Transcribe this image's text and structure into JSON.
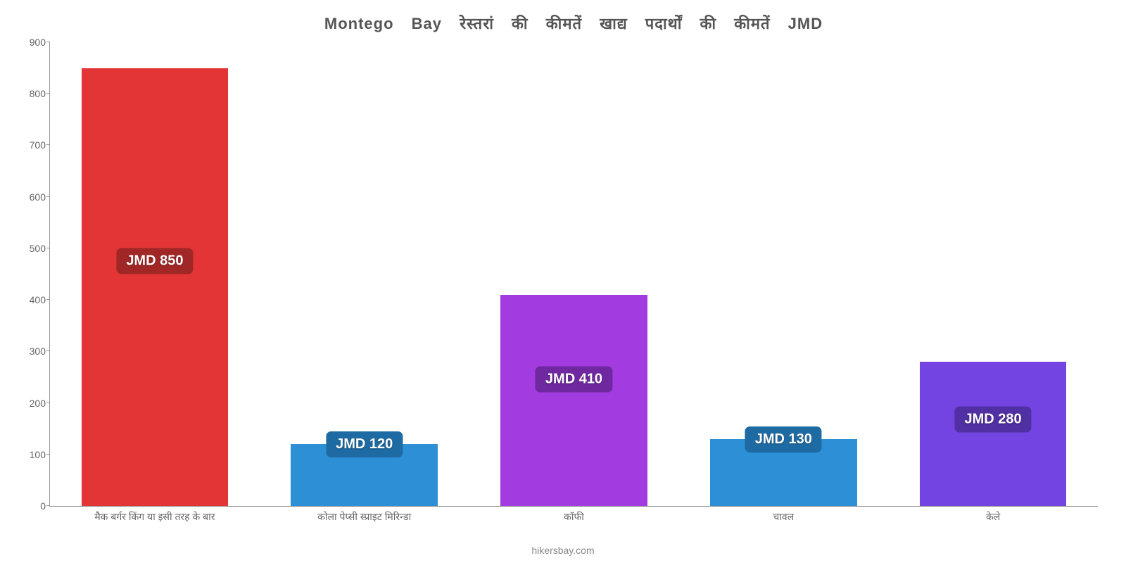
{
  "chart": {
    "type": "bar",
    "title": "Montego Bay रेस्तरां की कीमतें खाद्य पदार्थों की कीमतें JMD",
    "title_fontsize": 22,
    "title_color": "#555555",
    "background_color": "#ffffff",
    "axis_color": "#999999",
    "label_color": "#666666",
    "label_fontsize": 14,
    "ylim": [
      0,
      900
    ],
    "ytick_step": 100,
    "yticks": [
      0,
      100,
      200,
      300,
      400,
      500,
      600,
      700,
      800,
      900
    ],
    "bar_width_pct": 70,
    "categories": [
      "मैक बर्गर किंग या इसी तरह के बार",
      "कोला पेप्सी स्प्राइट मिरिन्डा",
      "कॉफी",
      "चावल",
      "केले"
    ],
    "values": [
      850,
      120,
      410,
      130,
      280
    ],
    "value_labels": [
      "JMD 850",
      "JMD 120",
      "JMD 410",
      "JMD 130",
      "JMD 280"
    ],
    "bar_colors": [
      "#e33535",
      "#2d8fd6",
      "#a23be0",
      "#2d8fd6",
      "#7444e2"
    ],
    "badge_colors": [
      "#a12727",
      "#1e6ba3",
      "#6f28a0",
      "#1e6ba3",
      "#5130a3"
    ],
    "badge_text_color": "#ffffff",
    "badge_fontsize": 20,
    "footer": "hikersbay.com",
    "footer_color": "#888888"
  }
}
